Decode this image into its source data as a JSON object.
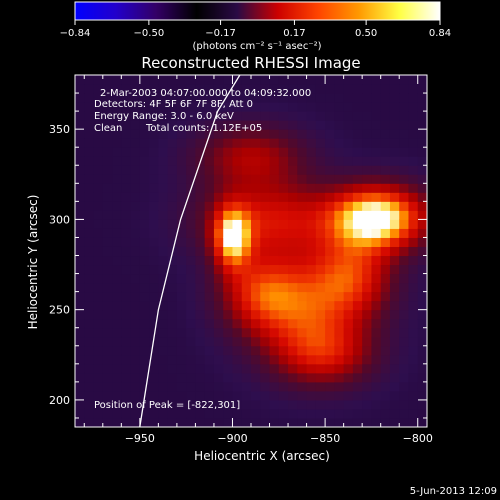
{
  "chart_data": {
    "type": "heatmap",
    "title": "Reconstructed RHESSI Image",
    "xlabel": "Heliocentric X (arcsec)",
    "ylabel": "Heliocentric Y (arcsec)",
    "xlim": [
      -985,
      -795
    ],
    "ylim": [
      185,
      380
    ],
    "x_ticks": [
      -950,
      -900,
      -850,
      -800
    ],
    "x_tick_labels": [
      "−950",
      "−900",
      "−850",
      "−800"
    ],
    "y_ticks": [
      200,
      250,
      300,
      350
    ],
    "y_tick_labels": [
      "200",
      "250",
      "300",
      "350"
    ],
    "colorbar": {
      "min": -0.84,
      "max": 0.84,
      "ticks": [
        -0.84,
        -0.5,
        -0.17,
        0.17,
        0.5,
        0.84
      ],
      "tick_labels": [
        "−0.84",
        "−0.50",
        "−0.17",
        "0.17",
        "0.50",
        "0.84"
      ],
      "label": "(photons cm⁻² s⁻¹ asec⁻²)",
      "colors": [
        "#0000ff",
        "#2200cc",
        "#330066",
        "#000000",
        "#2a0a45",
        "#cc0000",
        "#ff4400",
        "#ff9900",
        "#ffff44",
        "#ffffff"
      ]
    },
    "annotations": {
      "time_range": "2-Mar-2003 04:07:00.000 to 04:09:32.000",
      "detectors": "Detectors: 4F 5F 6F 7F 8F, Att 0",
      "energy": "Energy Range: 3.0 - 6.0 keV",
      "method": "Clean",
      "counts": "Total counts: 1.12E+05",
      "peak": "Position of Peak = [-822,301]"
    },
    "peak": {
      "x": -822,
      "y": 301
    },
    "sources": [
      {
        "x": -822,
        "y": 301,
        "sx": 18,
        "sy": 12,
        "amp": 0.84
      },
      {
        "x": -900,
        "y": 290,
        "sx": 7,
        "sy": 12,
        "amp": 0.62
      },
      {
        "x": -880,
        "y": 300,
        "sx": 25,
        "sy": 15,
        "amp": 0.4
      },
      {
        "x": -860,
        "y": 250,
        "sx": 22,
        "sy": 20,
        "amp": 0.45
      },
      {
        "x": -885,
        "y": 260,
        "sx": 15,
        "sy": 14,
        "amp": 0.35
      },
      {
        "x": -835,
        "y": 270,
        "sx": 15,
        "sy": 15,
        "amp": 0.38
      },
      {
        "x": -890,
        "y": 335,
        "sx": 20,
        "sy": 12,
        "amp": 0.3
      },
      {
        "x": -850,
        "y": 225,
        "sx": 18,
        "sy": 12,
        "amp": 0.3
      }
    ],
    "limb": [
      [
        -950,
        185
      ],
      [
        -940,
        250
      ],
      [
        -928,
        300
      ],
      [
        -908,
        360
      ],
      [
        -893,
        385
      ]
    ],
    "grid": false
  },
  "footer": {
    "date": "5-Jun-2013 12:09"
  }
}
